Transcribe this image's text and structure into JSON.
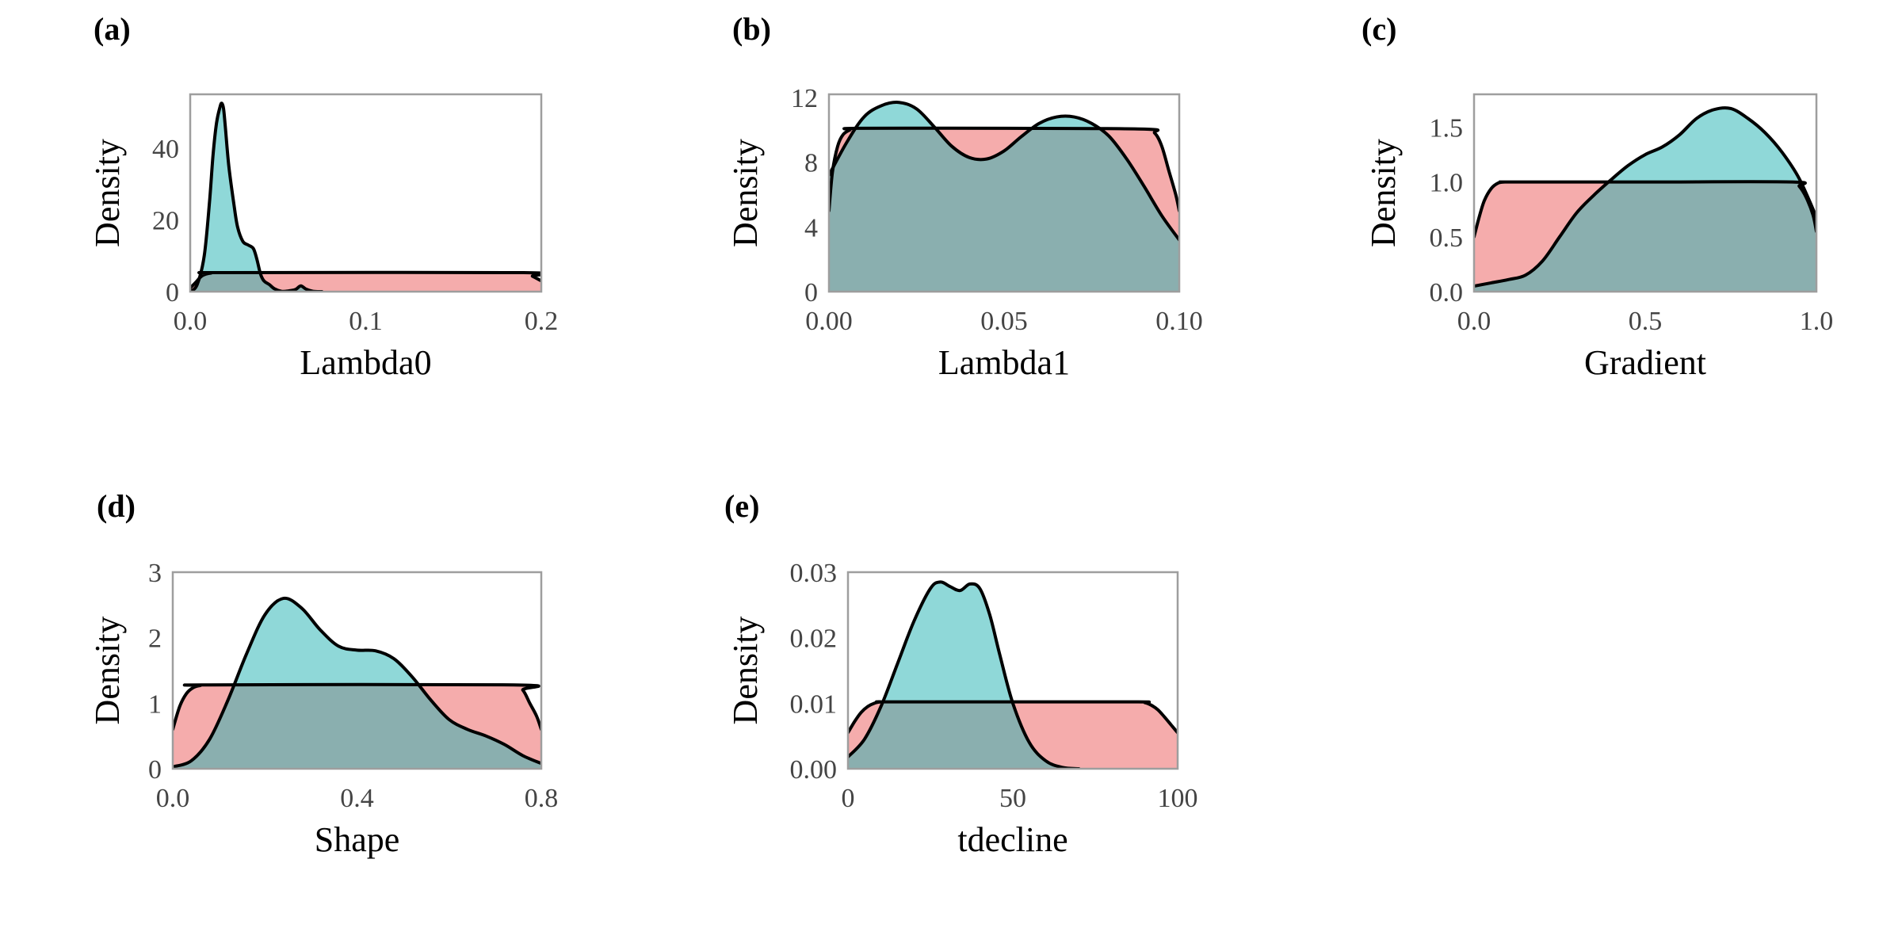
{
  "figure": {
    "colors": {
      "prior_fill": "#f08080",
      "posterior_fill": "#20b2b2",
      "outline": "#000000",
      "frame": "#9e9e9e"
    }
  },
  "chart_data": [
    {
      "type": "area",
      "panel_label": "(a)",
      "xlabel": "Lambda0",
      "ylabel": "Density",
      "xlim": [
        0,
        0.2
      ],
      "ylim": [
        0,
        55
      ],
      "xticks": [
        0,
        0.1,
        0.2
      ],
      "xtick_labels": [
        "0.0",
        "0.1",
        "0.2"
      ],
      "yticks": [
        0,
        20,
        40
      ],
      "ytick_labels": [
        "0",
        "20",
        "40"
      ],
      "grid": false,
      "series": [
        {
          "x": [
            0,
            0.003,
            0.007,
            0.012,
            0.02,
            0.19,
            0.195,
            0.2
          ],
          "y": [
            1,
            2.5,
            4.5,
            5.2,
            5.3,
            5.3,
            4.3,
            3
          ]
        },
        {
          "x": [
            0,
            0.004,
            0.008,
            0.011,
            0.013,
            0.015,
            0.017,
            0.018,
            0.019,
            0.02,
            0.022,
            0.025,
            0.027,
            0.03,
            0.033,
            0.036,
            0.038,
            0.04,
            0.042,
            0.045,
            0.048,
            0.052,
            0.056,
            0.06,
            0.063,
            0.066,
            0.07,
            0.075
          ],
          "y": [
            0,
            2,
            10,
            25,
            38,
            47,
            51.5,
            52.5,
            51,
            46,
            35,
            24,
            18,
            14,
            13,
            12,
            9,
            5,
            3,
            2,
            0.8,
            0.1,
            0.2,
            0.6,
            1.6,
            0.7,
            0.1,
            0
          ]
        }
      ]
    },
    {
      "type": "area",
      "panel_label": "(b)",
      "xlabel": "Lambda1",
      "ylabel": "Density",
      "xlim": [
        0,
        0.1
      ],
      "ylim": [
        0,
        12.2
      ],
      "xticks": [
        0,
        0.05,
        0.1
      ],
      "xtick_labels": [
        "0.00",
        "0.05",
        "0.10"
      ],
      "yticks": [
        0,
        4,
        8,
        12
      ],
      "ytick_labels": [
        "0",
        "4",
        "8",
        "12"
      ],
      "grid": false,
      "series": [
        {
          "x": [
            0,
            0.001,
            0.0025,
            0.004,
            0.006,
            0.008,
            0.05,
            0.09,
            0.093,
            0.095,
            0.097,
            0.099,
            0.1
          ],
          "y": [
            5,
            7.4,
            9,
            9.7,
            10,
            10.1,
            10.1,
            10.05,
            9.8,
            9,
            7.5,
            6,
            5
          ]
        },
        {
          "x": [
            0,
            0.005,
            0.01,
            0.015,
            0.02,
            0.025,
            0.03,
            0.035,
            0.04,
            0.045,
            0.05,
            0.055,
            0.06,
            0.065,
            0.07,
            0.075,
            0.08,
            0.085,
            0.09,
            0.095,
            0.1
          ],
          "y": [
            7.2,
            9.2,
            10.8,
            11.5,
            11.7,
            11.3,
            10.2,
            9,
            8.3,
            8.2,
            8.7,
            9.6,
            10.4,
            10.8,
            10.8,
            10.4,
            9.6,
            8.2,
            6.5,
            4.7,
            3.2
          ]
        }
      ]
    },
    {
      "type": "area",
      "panel_label": "(c)",
      "xlabel": "Gradient",
      "ylabel": "Density",
      "xlim": [
        0,
        1
      ],
      "ylim": [
        0,
        1.8
      ],
      "xticks": [
        0,
        0.5,
        1
      ],
      "xtick_labels": [
        "0.0",
        "0.5",
        "1.0"
      ],
      "yticks": [
        0,
        0.5,
        1,
        1.5
      ],
      "ytick_labels": [
        "0.0",
        "0.5",
        "1.0",
        "1.5"
      ],
      "grid": false,
      "series": [
        {
          "x": [
            0,
            0.015,
            0.03,
            0.05,
            0.07,
            0.09,
            0.11,
            0.5,
            0.93,
            0.95,
            0.97,
            0.99,
            1.0
          ],
          "y": [
            0.5,
            0.68,
            0.83,
            0.94,
            0.99,
            1.0,
            1.0,
            1.0,
            1.0,
            0.96,
            0.86,
            0.7,
            0.55
          ]
        },
        {
          "x": [
            0,
            0.05,
            0.1,
            0.15,
            0.2,
            0.25,
            0.3,
            0.35,
            0.4,
            0.45,
            0.5,
            0.55,
            0.6,
            0.65,
            0.7,
            0.75,
            0.8,
            0.85,
            0.9,
            0.95,
            1.0
          ],
          "y": [
            0.05,
            0.08,
            0.11,
            0.15,
            0.28,
            0.5,
            0.72,
            0.88,
            1.02,
            1.15,
            1.25,
            1.32,
            1.43,
            1.58,
            1.66,
            1.67,
            1.58,
            1.45,
            1.27,
            1.03,
            0.68
          ]
        }
      ]
    },
    {
      "type": "area",
      "panel_label": "(d)",
      "xlabel": "Shape",
      "ylabel": "Density",
      "xlim": [
        0,
        0.8
      ],
      "ylim": [
        0,
        3
      ],
      "xticks": [
        0,
        0.4,
        0.8
      ],
      "xtick_labels": [
        "0.0",
        "0.4",
        "0.8"
      ],
      "yticks": [
        0,
        1,
        2,
        3
      ],
      "ytick_labels": [
        "0",
        "1",
        "2",
        "3"
      ],
      "grid": false,
      "series": [
        {
          "x": [
            0,
            0.015,
            0.03,
            0.045,
            0.06,
            0.08,
            0.74,
            0.76,
            0.775,
            0.79,
            0.8
          ],
          "y": [
            0.6,
            0.95,
            1.15,
            1.24,
            1.27,
            1.28,
            1.28,
            1.2,
            1.0,
            0.8,
            0.6
          ]
        },
        {
          "x": [
            0,
            0.04,
            0.08,
            0.12,
            0.16,
            0.2,
            0.24,
            0.28,
            0.32,
            0.36,
            0.4,
            0.44,
            0.48,
            0.52,
            0.56,
            0.6,
            0.64,
            0.68,
            0.72,
            0.76,
            0.8
          ],
          "y": [
            0.03,
            0.12,
            0.45,
            1.05,
            1.75,
            2.35,
            2.6,
            2.45,
            2.12,
            1.87,
            1.81,
            1.8,
            1.68,
            1.4,
            1.05,
            0.75,
            0.6,
            0.5,
            0.37,
            0.2,
            0.08
          ]
        }
      ]
    },
    {
      "type": "area",
      "panel_label": "(e)",
      "xlabel": "tdecline",
      "ylabel": "Density",
      "xlim": [
        0,
        100
      ],
      "ylim": [
        0,
        0.03
      ],
      "xticks": [
        0,
        50,
        100
      ],
      "xtick_labels": [
        "0",
        "50",
        "100"
      ],
      "yticks": [
        0,
        0.01,
        0.02,
        0.03
      ],
      "ytick_labels": [
        "0.00",
        "0.01",
        "0.02",
        "0.03"
      ],
      "grid": false,
      "series": [
        {
          "x": [
            0,
            2,
            4,
            6,
            8,
            10,
            12,
            50,
            88,
            90,
            92,
            94,
            96,
            98,
            100
          ],
          "y": [
            0.0055,
            0.0072,
            0.0086,
            0.0095,
            0.01,
            0.0102,
            0.0102,
            0.0102,
            0.0102,
            0.0101,
            0.0097,
            0.009,
            0.0079,
            0.0067,
            0.0055
          ]
        },
        {
          "x": [
            0,
            5,
            10,
            15,
            20,
            25,
            28,
            31,
            34,
            37,
            40,
            43,
            46,
            50,
            55,
            60,
            65,
            70
          ],
          "y": [
            0.0018,
            0.0045,
            0.0095,
            0.016,
            0.0225,
            0.0275,
            0.0285,
            0.0278,
            0.0272,
            0.0282,
            0.0275,
            0.0235,
            0.0175,
            0.01,
            0.004,
            0.0012,
            0.0002,
            0
          ]
        }
      ]
    }
  ]
}
